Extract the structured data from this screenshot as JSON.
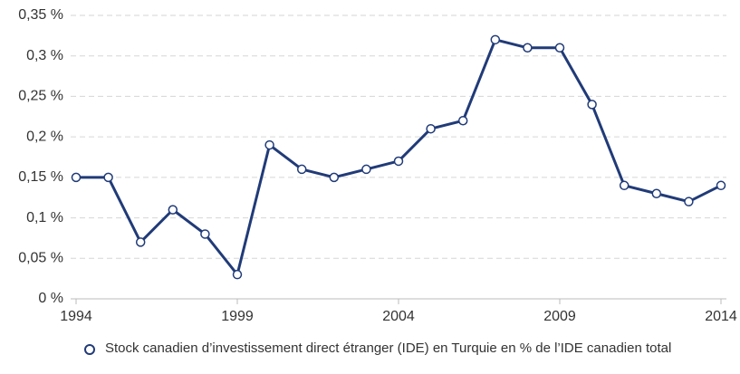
{
  "chart_data": {
    "type": "line",
    "x": [
      1994,
      1995,
      1996,
      1997,
      1998,
      1999,
      2000,
      2001,
      2002,
      2003,
      2004,
      2005,
      2006,
      2007,
      2008,
      2009,
      2010,
      2011,
      2012,
      2013,
      2014
    ],
    "series": [
      {
        "name": "Stock canadien d’investissement direct étranger (IDE) en Turquie en % de l’IDE canadien total",
        "color": "#213b78",
        "values": [
          0.15,
          0.15,
          0.07,
          0.11,
          0.08,
          0.03,
          0.19,
          0.16,
          0.15,
          0.16,
          0.17,
          0.21,
          0.22,
          0.32,
          0.31,
          0.31,
          0.24,
          0.14,
          0.13,
          0.12,
          0.14
        ]
      }
    ],
    "xlim": [
      1994,
      2014
    ],
    "xticks": [
      1994,
      1999,
      2004,
      2009,
      2014
    ],
    "ylim": [
      0,
      0.35
    ],
    "yticks": [
      {
        "value": 0,
        "label": "0 %"
      },
      {
        "value": 0.05,
        "label": "0,05 %"
      },
      {
        "value": 0.1,
        "label": "0,1 %"
      },
      {
        "value": 0.15,
        "label": "0,15 %"
      },
      {
        "value": 0.2,
        "label": "0,2 %"
      },
      {
        "value": 0.25,
        "label": "0,25 %"
      },
      {
        "value": 0.3,
        "label": "0,3 %"
      },
      {
        "value": 0.35,
        "label": "0,35 %"
      }
    ],
    "grid": true,
    "legend": "bottom"
  }
}
